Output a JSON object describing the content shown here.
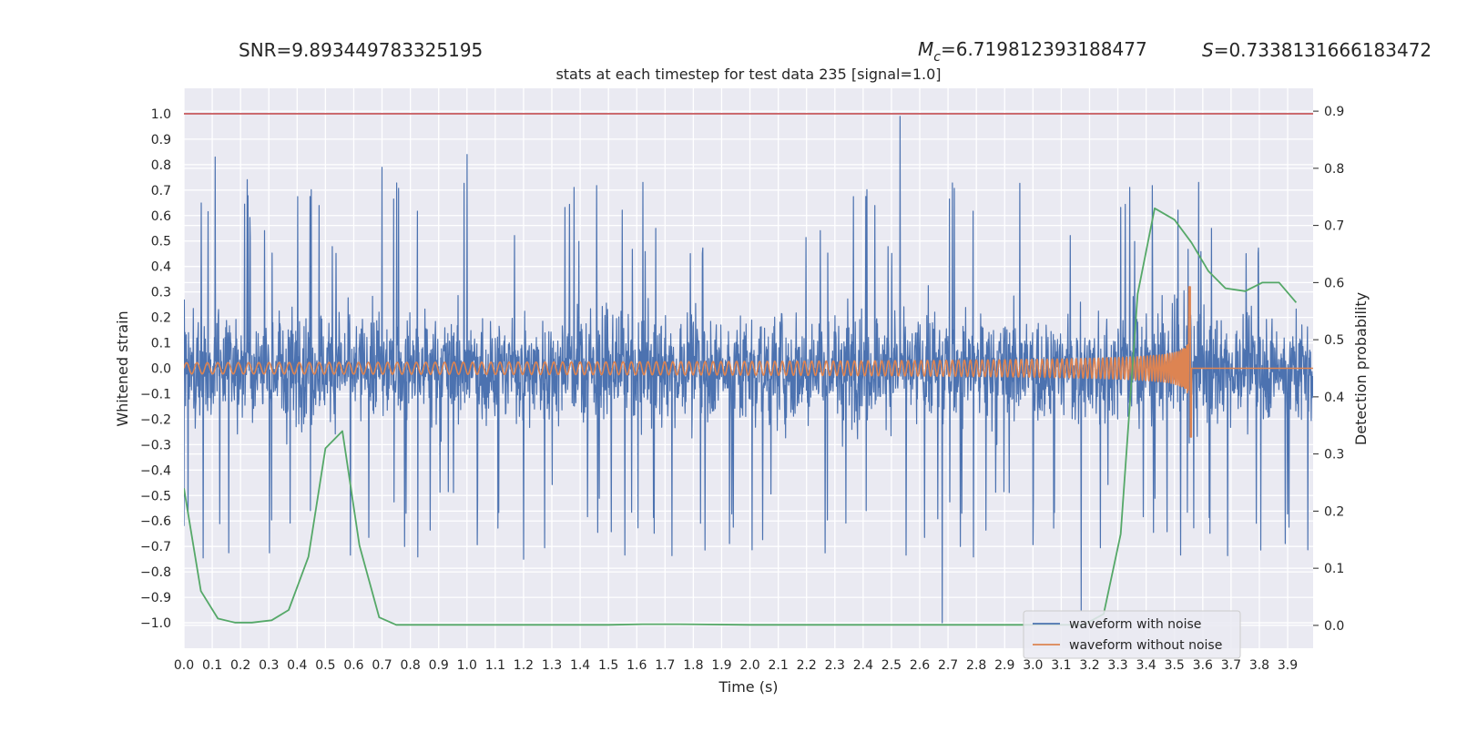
{
  "header": {
    "snr": "SNR=9.893449783325195",
    "mc_sym": "M",
    "mc_sub": "c",
    "mc_val": "=6.719812393188477",
    "s_sym": "S",
    "s_val": "=0.7338131666183472"
  },
  "chart_data": {
    "type": "line",
    "title": "stats at each timestep for test data 235 [signal=1.0]",
    "xlabel": "Time (s)",
    "ylabel": "Whitened strain",
    "y2label": "Detection probability",
    "xlim": [
      0,
      3.99
    ],
    "ylim": [
      -1.1,
      1.1
    ],
    "y2lim": [
      -0.04,
      0.94
    ],
    "grid": true,
    "legend_position": "bottom-right",
    "x_ticks": [
      "0.0",
      "0.1",
      "0.2",
      "0.3",
      "0.4",
      "0.5",
      "0.6",
      "0.7",
      "0.8",
      "0.9",
      "1.0",
      "1.1",
      "1.2",
      "1.3",
      "1.4",
      "1.5",
      "1.6",
      "1.7",
      "1.8",
      "1.9",
      "2.0",
      "2.1",
      "2.2",
      "2.3",
      "2.4",
      "2.5",
      "2.6",
      "2.7",
      "2.8",
      "2.9",
      "3.0",
      "3.1",
      "3.2",
      "3.3",
      "3.4",
      "3.5",
      "3.6",
      "3.7",
      "3.8",
      "3.9"
    ],
    "y_ticks": [
      "1.0",
      "0.9",
      "0.8",
      "0.7",
      "0.6",
      "0.5",
      "0.4",
      "0.3",
      "0.2",
      "0.1",
      "0.0",
      "−0.1",
      "−0.2",
      "−0.3",
      "−0.4",
      "−0.5",
      "−0.6",
      "−0.7",
      "−0.8",
      "−0.9",
      "−1.0"
    ],
    "y2_ticks": [
      "0.9",
      "0.8",
      "0.7",
      "0.6",
      "0.5",
      "0.4",
      "0.3",
      "0.2",
      "0.1",
      "0.0"
    ],
    "threshold": {
      "value": 1.0,
      "color": "#c44e52"
    },
    "series": [
      {
        "name": "waveform with noise",
        "color": "#4c72b0",
        "axis": "left",
        "notable_peaks": [
          {
            "x": 0.11,
            "y": 0.83
          },
          {
            "x": 0.7,
            "y": 0.79
          },
          {
            "x": 1.0,
            "y": 0.84
          },
          {
            "x": 2.53,
            "y": 0.99
          },
          {
            "x": 2.68,
            "y": -1.0
          },
          {
            "x": 3.17,
            "y": -0.95
          },
          {
            "x": 0.0,
            "y": -0.62
          },
          {
            "x": 1.2,
            "y": -0.75
          }
        ],
        "noise_amplitude": 0.26
      },
      {
        "name": "waveform without noise",
        "color": "#dd8452",
        "axis": "left",
        "chirp": {
          "t_coalescence": 3.555,
          "amplitude_start": 0.022,
          "amplitude_peak": 0.32,
          "amplitude_min_peak": -0.27,
          "zero_after": 3.56
        }
      },
      {
        "name": "",
        "color": "#55a868",
        "axis": "right",
        "x": [
          0.0,
          0.06,
          0.12,
          0.18,
          0.24,
          0.31,
          0.37,
          0.44,
          0.5,
          0.56,
          0.62,
          0.69,
          0.75,
          0.81,
          1.0,
          1.5,
          1.62,
          1.75,
          2.0,
          2.5,
          3.0,
          3.12,
          3.18,
          3.25,
          3.31,
          3.37,
          3.43,
          3.5,
          3.56,
          3.62,
          3.68,
          3.75,
          3.81,
          3.87,
          3.93
        ],
        "y": [
          0.24,
          0.06,
          0.012,
          0.005,
          0.005,
          0.009,
          0.027,
          0.12,
          0.31,
          0.34,
          0.14,
          0.014,
          0.001,
          0.001,
          0.001,
          0.001,
          0.002,
          0.002,
          0.001,
          0.001,
          0.001,
          0.001,
          0.001,
          0.02,
          0.16,
          0.58,
          0.73,
          0.71,
          0.67,
          0.62,
          0.59,
          0.585,
          0.6,
          0.6,
          0.565
        ]
      }
    ]
  }
}
